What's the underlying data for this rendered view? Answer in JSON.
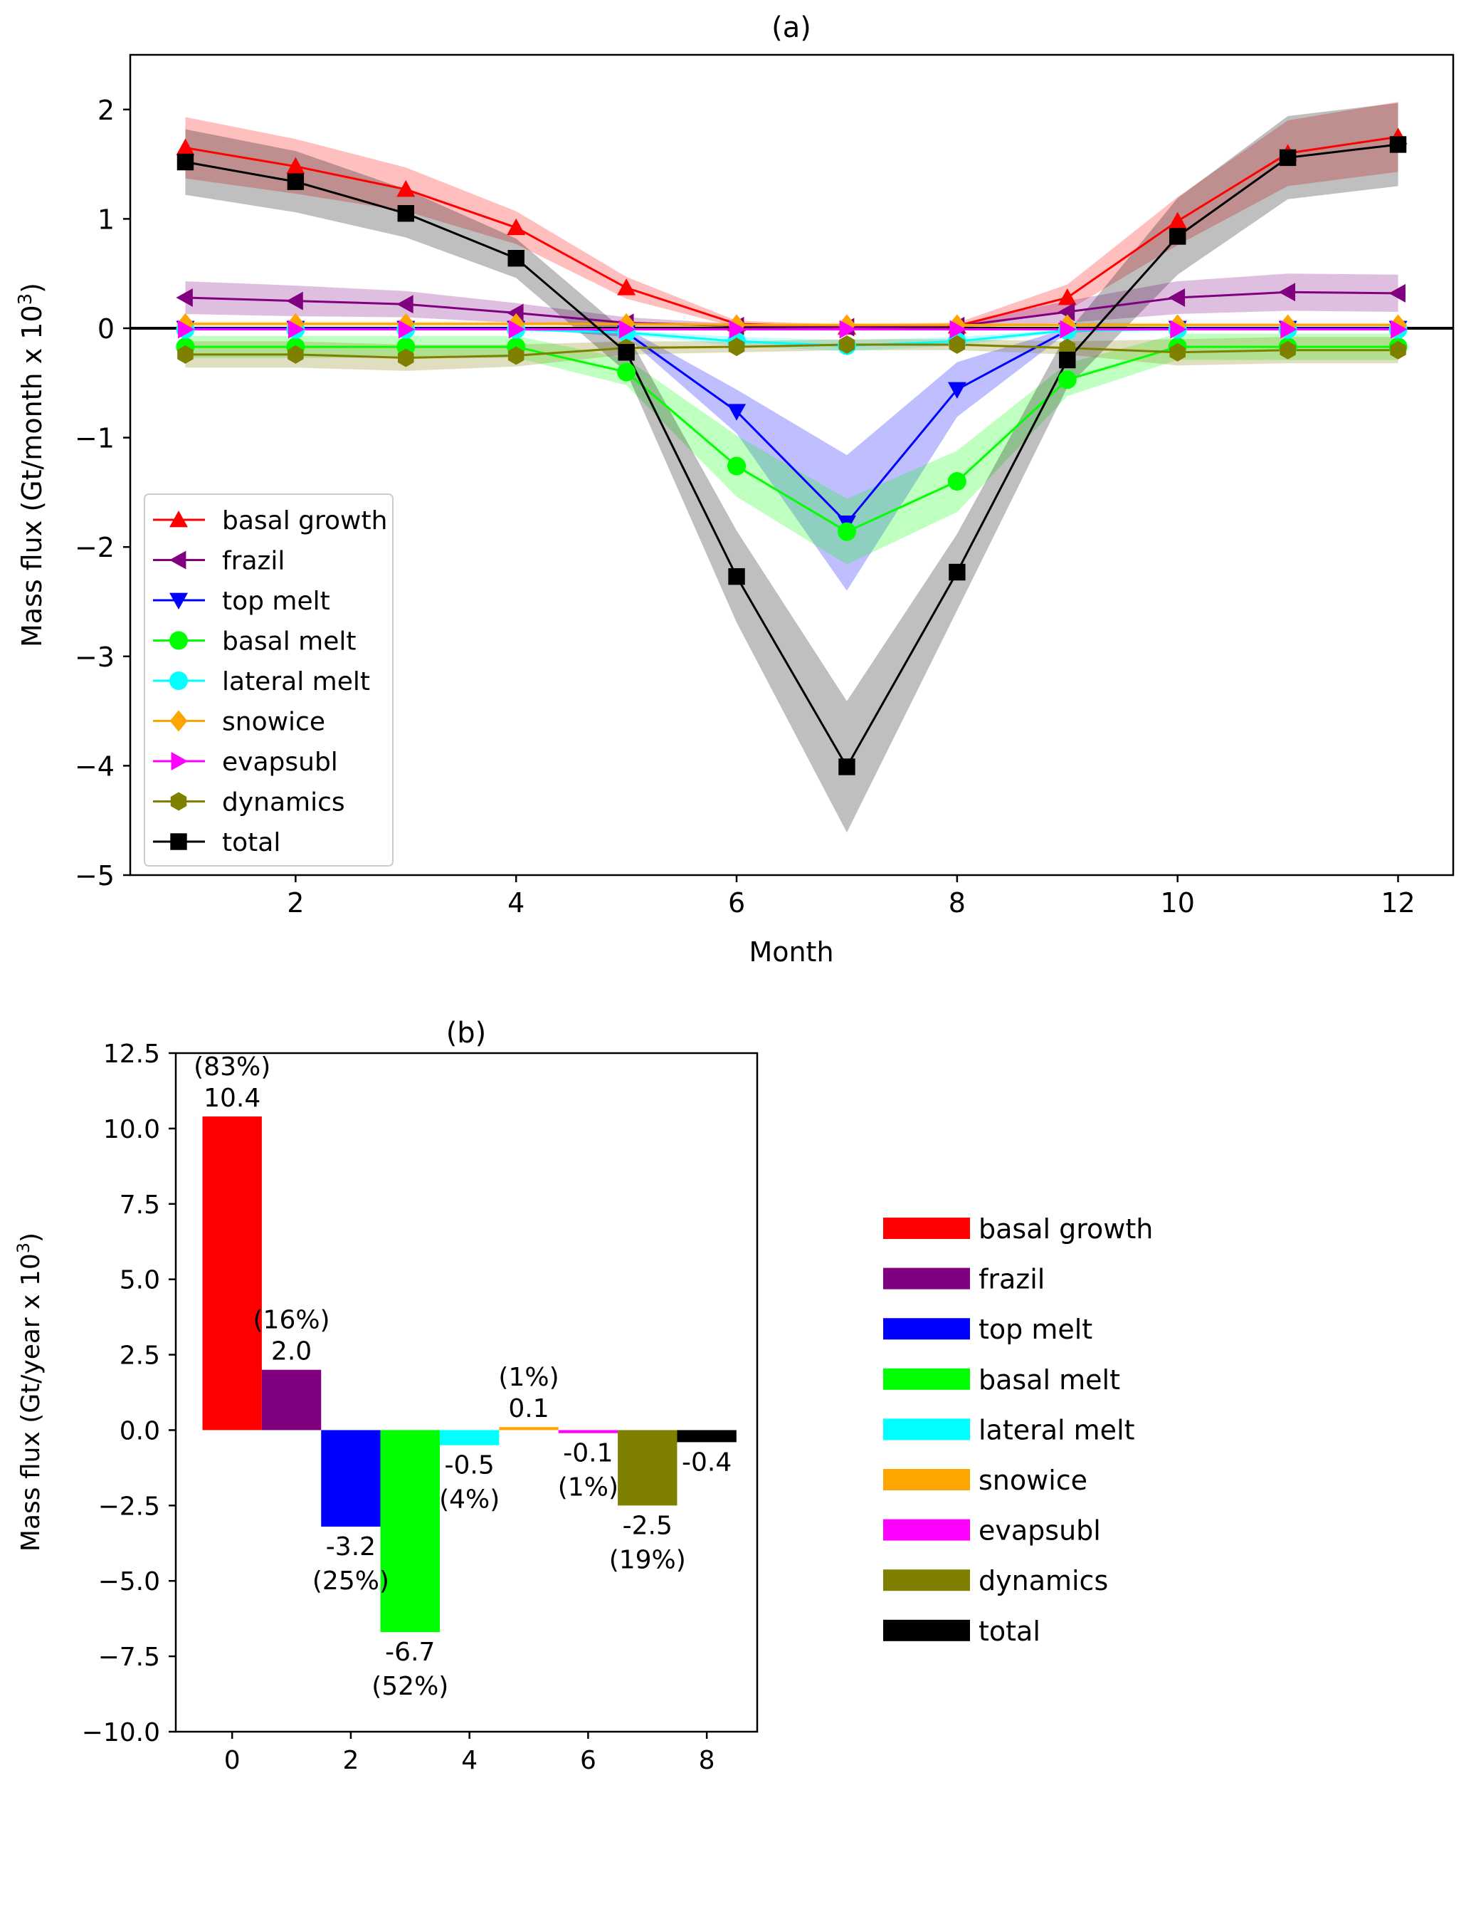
{
  "chart_data": [
    {
      "type": "line",
      "title": "(a)",
      "xlabel": "Month",
      "ylabel": "Mass flux (Gt/month x 10",
      "ylabel_sup": "3",
      "ylabel_end": ")",
      "xlim": [
        0.5,
        12.5
      ],
      "ylim": [
        -5,
        2.5
      ],
      "xticks": [
        2,
        4,
        6,
        8,
        10,
        12
      ],
      "yticks": [
        -5,
        -4,
        -3,
        -2,
        -1,
        0,
        1,
        2
      ],
      "ytick_labels": [
        "−5",
        "−4",
        "−3",
        "−2",
        "−1",
        "0",
        "1",
        "2"
      ],
      "grid": false,
      "zero_line": true,
      "legend_position": "lower-left",
      "x": [
        1,
        2,
        3,
        4,
        5,
        6,
        7,
        8,
        9,
        10,
        11,
        12
      ],
      "series": [
        {
          "name": "basal growth",
          "color": "#ff0000",
          "marker": "triangle-up",
          "values": [
            1.65,
            1.48,
            1.27,
            0.92,
            0.37,
            0.04,
            0.01,
            0.02,
            0.28,
            0.98,
            1.6,
            1.75
          ],
          "band": [
            0.28,
            0.25,
            0.2,
            0.15,
            0.1,
            0.03,
            0.02,
            0.03,
            0.12,
            0.22,
            0.3,
            0.32
          ]
        },
        {
          "name": "frazil",
          "color": "#800080",
          "marker": "triangle-left",
          "values": [
            0.28,
            0.25,
            0.22,
            0.14,
            0.05,
            0.02,
            0.01,
            0.02,
            0.15,
            0.28,
            0.33,
            0.32
          ],
          "band": [
            0.15,
            0.14,
            0.12,
            0.09,
            0.05,
            0.02,
            0.01,
            0.02,
            0.1,
            0.15,
            0.17,
            0.17
          ]
        },
        {
          "name": "top melt",
          "color": "#0000ff",
          "marker": "triangle-down",
          "values": [
            0.0,
            0.0,
            0.0,
            0.0,
            -0.04,
            -0.76,
            -1.78,
            -0.56,
            -0.02,
            0.0,
            0.0,
            0.0
          ],
          "band": [
            0.0,
            0.0,
            0.0,
            0.0,
            0.04,
            0.2,
            0.62,
            0.25,
            0.02,
            0.0,
            0.0,
            0.0
          ]
        },
        {
          "name": "basal melt",
          "color": "#00ff00",
          "marker": "circle",
          "values": [
            -0.17,
            -0.17,
            -0.17,
            -0.17,
            -0.4,
            -1.26,
            -1.86,
            -1.4,
            -0.47,
            -0.17,
            -0.17,
            -0.17
          ],
          "band": [
            0.1,
            0.1,
            0.1,
            0.1,
            0.12,
            0.28,
            0.3,
            0.28,
            0.15,
            0.12,
            0.12,
            0.12
          ]
        },
        {
          "name": "lateral melt",
          "color": "#00ffff",
          "marker": "circle",
          "values": [
            -0.01,
            -0.01,
            -0.01,
            -0.01,
            -0.04,
            -0.12,
            -0.16,
            -0.12,
            -0.02,
            -0.01,
            -0.01,
            -0.01
          ],
          "band": [
            0.01,
            0.01,
            0.01,
            0.01,
            0.02,
            0.04,
            0.05,
            0.04,
            0.01,
            0.01,
            0.01,
            0.01
          ]
        },
        {
          "name": "snowice",
          "color": "#ffa500",
          "marker": "diamond",
          "values": [
            0.04,
            0.04,
            0.04,
            0.04,
            0.04,
            0.03,
            0.03,
            0.03,
            0.03,
            0.03,
            0.03,
            0.03
          ],
          "band": [
            0.02,
            0.02,
            0.02,
            0.02,
            0.02,
            0.02,
            0.02,
            0.02,
            0.02,
            0.02,
            0.02,
            0.02
          ]
        },
        {
          "name": "evapsubl",
          "color": "#ff00ff",
          "marker": "triangle-right",
          "values": [
            -0.01,
            -0.01,
            -0.01,
            -0.01,
            -0.01,
            -0.01,
            -0.01,
            -0.01,
            -0.01,
            -0.01,
            -0.01,
            -0.01
          ],
          "band": [
            0.01,
            0.01,
            0.01,
            0.01,
            0.01,
            0.01,
            0.01,
            0.01,
            0.01,
            0.01,
            0.01,
            0.01
          ]
        },
        {
          "name": "dynamics",
          "color": "#808000",
          "marker": "hexagon",
          "values": [
            -0.24,
            -0.24,
            -0.27,
            -0.25,
            -0.18,
            -0.17,
            -0.15,
            -0.15,
            -0.18,
            -0.22,
            -0.2,
            -0.2
          ],
          "band": [
            0.12,
            0.12,
            0.12,
            0.1,
            0.06,
            0.05,
            0.05,
            0.05,
            0.06,
            0.12,
            0.12,
            0.12
          ]
        },
        {
          "name": "total",
          "color": "#000000",
          "marker": "square",
          "values": [
            1.52,
            1.34,
            1.05,
            0.64,
            -0.22,
            -2.27,
            -4.01,
            -2.23,
            -0.29,
            0.84,
            1.56,
            1.68
          ],
          "band": [
            0.3,
            0.28,
            0.22,
            0.18,
            0.18,
            0.42,
            0.6,
            0.35,
            0.25,
            0.35,
            0.38,
            0.38
          ]
        }
      ]
    },
    {
      "type": "bar",
      "title": "(b)",
      "xlabel": "",
      "ylabel": "Mass flux (Gt/year x 10",
      "ylabel_sup": "3",
      "ylabel_end": ")",
      "xlim": [
        -0.95,
        8.85
      ],
      "ylim": [
        -10,
        12.5
      ],
      "xticks": [
        0,
        2,
        4,
        6,
        8
      ],
      "yticks": [
        -10,
        -7.5,
        -5,
        -2.5,
        0,
        2.5,
        5,
        7.5,
        10,
        12.5
      ],
      "ytick_labels": [
        "−10.0",
        "−7.5",
        "−5.0",
        "−2.5",
        "0.0",
        "2.5",
        "5.0",
        "7.5",
        "10.0",
        "12.5"
      ],
      "grid": false,
      "legend_position": "right",
      "categories": [
        "basal growth",
        "frazil",
        "top melt",
        "basal melt",
        "lateral melt",
        "snowice",
        "evapsubl",
        "dynamics",
        "total"
      ],
      "x": [
        0,
        1,
        2,
        3,
        4,
        5,
        6,
        7,
        8
      ],
      "values": [
        10.4,
        2.0,
        -3.2,
        -6.7,
        -0.5,
        0.1,
        -0.1,
        -2.5,
        -0.4
      ],
      "colors": [
        "#ff0000",
        "#800080",
        "#0000ff",
        "#00ff00",
        "#00ffff",
        "#ffa500",
        "#ff00ff",
        "#808000",
        "#000000"
      ],
      "value_labels": [
        "10.4",
        "2.0",
        "-3.2",
        "-6.7",
        "-0.5",
        "0.1",
        "-0.1",
        "-2.5",
        "-0.4"
      ],
      "percent_labels": [
        "(83%)",
        "(16%)",
        "(25%)",
        "(52%)",
        "(4%)",
        "(1%)",
        "(1%)",
        "(19%)",
        ""
      ]
    }
  ]
}
